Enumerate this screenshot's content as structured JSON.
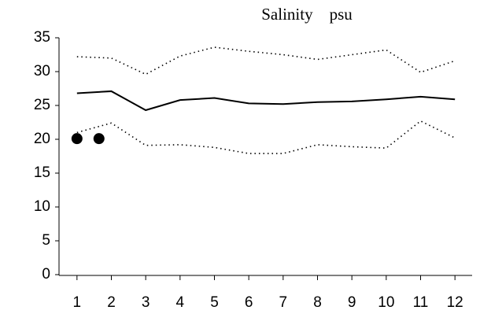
{
  "chart_data": {
    "type": "line",
    "title": "Salinity    psu",
    "x": [
      1,
      2,
      3,
      4,
      5,
      6,
      7,
      8,
      9,
      10,
      11,
      12
    ],
    "series": [
      {
        "color": "#000000",
        "style": "solid",
        "values": [
          26.8,
          27.1,
          24.3,
          25.8,
          26.1,
          25.3,
          25.2,
          25.5,
          25.6,
          25.9,
          26.3,
          25.9
        ]
      },
      {
        "color": "#000000",
        "style": "dotted",
        "values": [
          32.2,
          32.0,
          29.6,
          32.3,
          33.6,
          33.0,
          32.5,
          31.8,
          32.5,
          33.2,
          29.9,
          31.6
        ]
      },
      {
        "color": "#000000",
        "style": "dotted",
        "values": [
          21.0,
          22.4,
          19.1,
          19.2,
          18.8,
          17.9,
          17.9,
          19.2,
          18.9,
          18.7,
          22.7,
          20.2
        ]
      }
    ],
    "points": {
      "color": "#000000",
      "x": [
        1,
        1.64
      ],
      "values": [
        20.1,
        20.1
      ]
    },
    "xlim": [
      0.5,
      12.5
    ],
    "xticks": [
      1,
      2,
      3,
      4,
      5,
      6,
      7,
      8,
      9,
      10,
      11,
      12
    ],
    "ylim": [
      0,
      35
    ],
    "yticks": [
      0,
      5,
      10,
      15,
      20,
      25,
      30,
      35
    ],
    "grid": false
  }
}
